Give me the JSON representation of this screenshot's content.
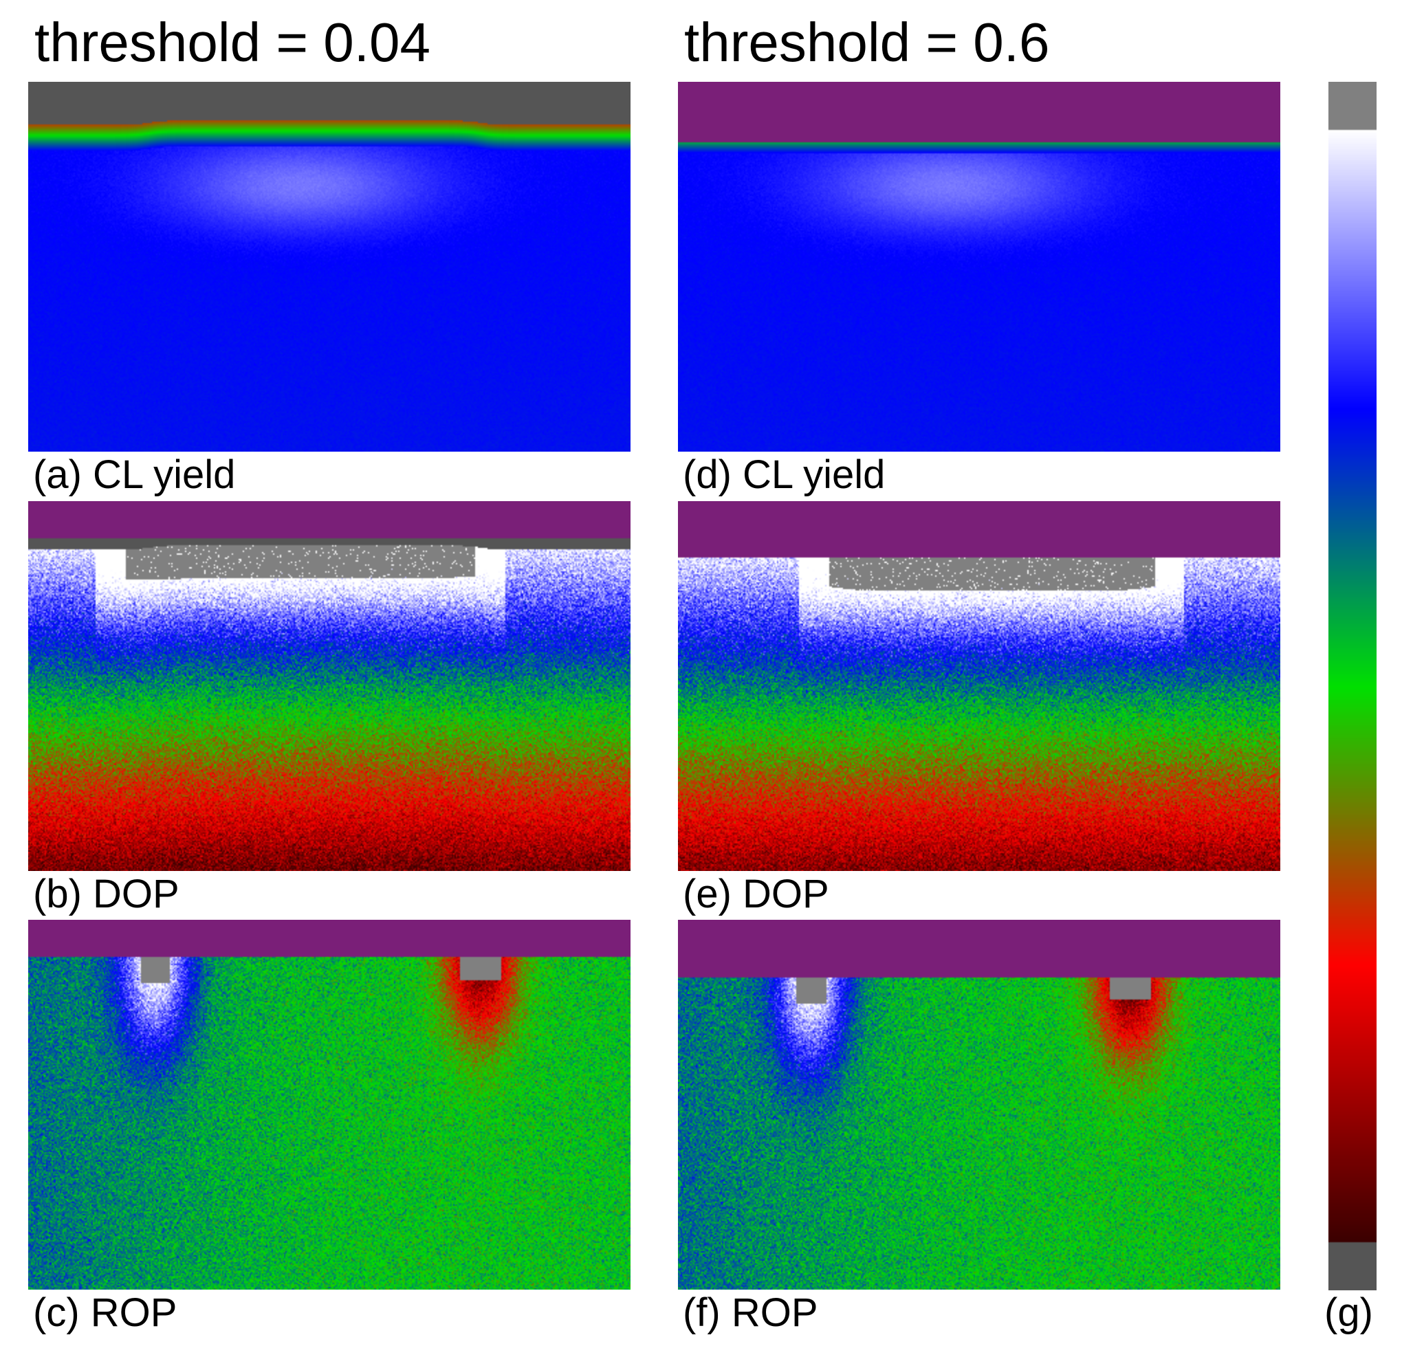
{
  "columns": [
    {
      "title": "threshold = 0.04"
    },
    {
      "title": "threshold = 0.6"
    }
  ],
  "panels": [
    {
      "id": "a",
      "label": "(a) CL yield",
      "kind": "cl",
      "threshold": 0.04
    },
    {
      "id": "b",
      "label": "(b) DOP",
      "kind": "dop",
      "threshold": 0.04
    },
    {
      "id": "c",
      "label": "(c) ROP",
      "kind": "rop",
      "threshold": 0.04
    },
    {
      "id": "d",
      "label": "(d) CL yield",
      "kind": "cl",
      "threshold": 0.6
    },
    {
      "id": "e",
      "label": "(e) DOP",
      "kind": "dop",
      "threshold": 0.6
    },
    {
      "id": "f",
      "label": "(f) ROP",
      "kind": "rop",
      "threshold": 0.6
    }
  ],
  "colorbar": {
    "label": "(g)"
  },
  "colors": {
    "masked_purple": "#7a1f78",
    "masked_gray": "#555555",
    "saturated_gray": "#808080",
    "colormap": [
      "#3a0000",
      "#ff0000",
      "#00e000",
      "#0000ff",
      "#ffffff"
    ]
  }
}
